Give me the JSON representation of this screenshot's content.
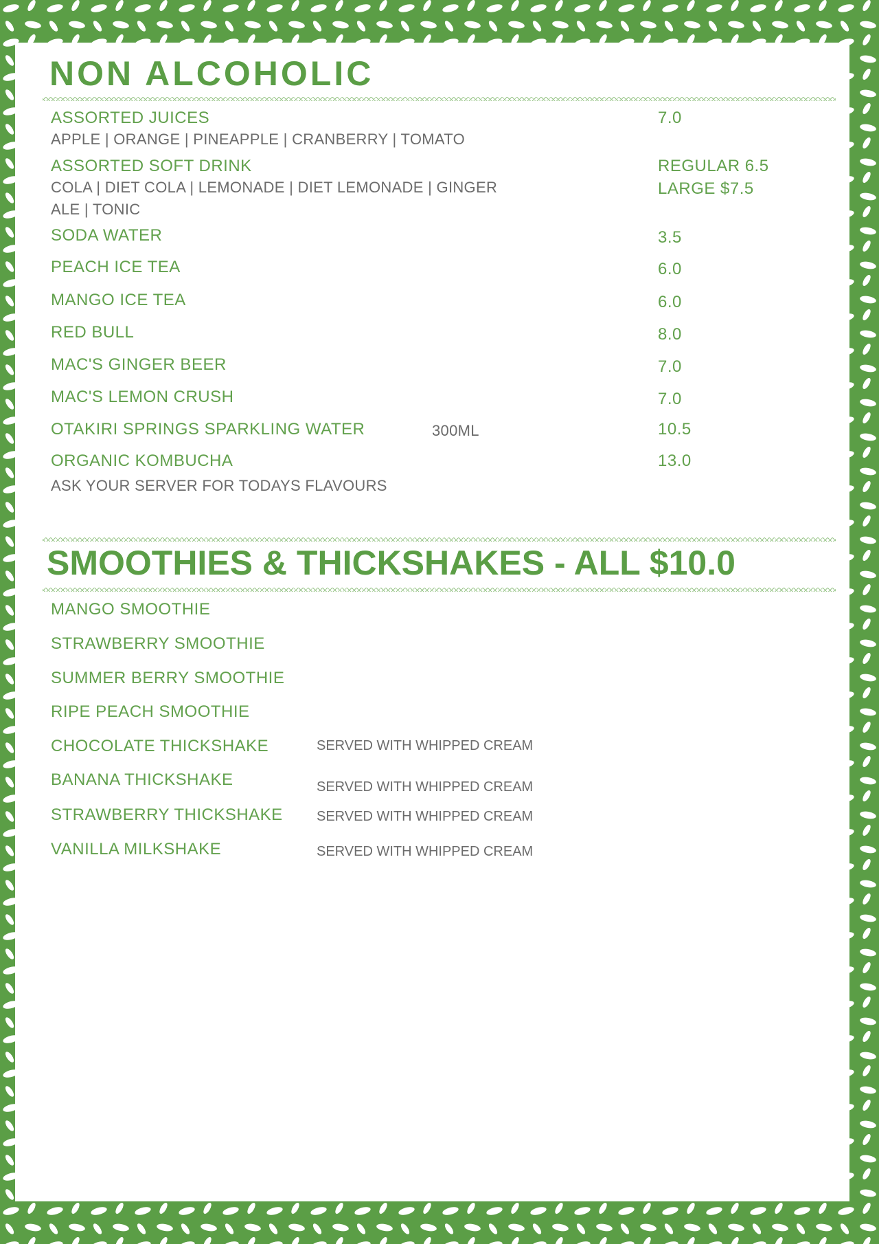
{
  "colors": {
    "accent": "#5b9e46",
    "text_gray": "#6c6c6c"
  },
  "non_alcoholic": {
    "title": "NON ALCOHOLIC",
    "items": [
      {
        "name": "ASSORTED JUICES",
        "price": "7.0",
        "desc": "APPLE | ORANGE | PINEAPPLE | CRANBERRY | TOMATO"
      },
      {
        "name": "ASSORTED SOFT DRINK",
        "price": "REGULAR 6.5",
        "price2": "LARGE $7.5",
        "desc": "COLA | DIET COLA | LEMONADE | DIET LEMONADE | GINGER",
        "desc2": "ALE | TONIC"
      },
      {
        "name": "SODA WATER",
        "price": "3.5"
      },
      {
        "name": "PEACH ICE TEA",
        "price": "6.0"
      },
      {
        "name": "MANGO ICE TEA",
        "price": "6.0"
      },
      {
        "name": "RED BULL",
        "price": "8.0"
      },
      {
        "name": "MAC'S GINGER BEER",
        "price": "7.0"
      },
      {
        "name": "MAC'S LEMON CRUSH",
        "price": "7.0"
      },
      {
        "name": "OTAKIRI  SPRINGS  SPARKLING  WATER",
        "size": "300ML",
        "price": "10.5"
      },
      {
        "name": "ORGANIC KOMBUCHA",
        "price": "13.0",
        "desc": "ASK YOUR SERVER FOR TODAYS FLAVOURS"
      }
    ]
  },
  "smoothies": {
    "title": "SMOOTHIES & THICKSHAKES - ALL $10.0",
    "items": [
      {
        "name": "MANGO SMOOTHIE"
      },
      {
        "name": "STRAWBERRY SMOOTHIE"
      },
      {
        "name": "SUMMER BERRY SMOOTHIE"
      },
      {
        "name": "RIPE PEACH SMOOTHIE"
      },
      {
        "name": "CHOCOLATE THICKSHAKE",
        "note": "SERVED WITH WHIPPED CREAM"
      },
      {
        "name": "BANANA THICKSHAKE",
        "note": "SERVED WITH WHIPPED CREAM"
      },
      {
        "name": "STRAWBERRY THICKSHAKE",
        "note": "SERVED WITH WHIPPED CREAM"
      },
      {
        "name": "VANILLA MILKSHAKE",
        "note": "SERVED WITH WHIPPED CREAM"
      }
    ]
  }
}
